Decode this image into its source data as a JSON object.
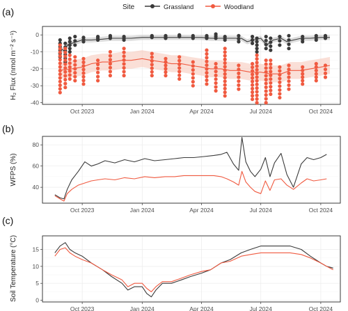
{
  "legend": {
    "title": "Site",
    "items": [
      {
        "label": "Grassland",
        "color": "#3a3a3a"
      },
      {
        "label": "Woodland",
        "color": "#f05a40"
      }
    ]
  },
  "colors": {
    "grassland": "#3a3a3a",
    "woodland": "#f05a40",
    "woodland_band": "#f6c9bd",
    "grassland_band": "#c7c7c7"
  },
  "chart_data": [
    {
      "panel": "(a)",
      "type": "line",
      "ylabel": "H₂ Flux  (nmol m⁻² s⁻¹)",
      "xlim": [
        "2023-08-01",
        "2024-10-31"
      ],
      "ylim": [
        -41,
        5
      ],
      "x_ticks": [
        {
          "date": "2023-10-01",
          "label": "Oct 2023"
        },
        {
          "date": "2024-01-01",
          "label": "Jan 2024"
        },
        {
          "date": "2024-04-01",
          "label": "Apr 2024"
        },
        {
          "date": "2024-07-01",
          "label": "Jul 2024"
        },
        {
          "date": "2024-10-01",
          "label": "Oct 2024"
        }
      ],
      "y_ticks": [
        0,
        -10,
        -20,
        -30,
        -40
      ],
      "series": [
        {
          "name": "Grassland",
          "color": "#3a3a3a",
          "x": [
            "2023-08-26",
            "2023-09-05",
            "2023-09-08",
            "2023-09-15",
            "2023-10-01",
            "2023-10-15",
            "2023-11-01",
            "2023-11-15",
            "2023-12-01",
            "2023-12-15",
            "2024-01-01",
            "2024-01-15",
            "2024-02-01",
            "2024-02-15",
            "2024-03-01",
            "2024-03-15",
            "2024-04-01",
            "2024-04-15",
            "2024-05-01",
            "2024-05-15",
            "2024-06-01",
            "2024-06-10",
            "2024-06-20",
            "2024-07-01",
            "2024-07-10",
            "2024-07-20",
            "2024-08-01",
            "2024-08-10",
            "2024-08-20",
            "2024-09-01",
            "2024-09-15",
            "2024-10-01",
            "2024-10-15"
          ],
          "y": [
            -7,
            -10,
            -6,
            -5,
            -3,
            -3,
            -2.5,
            -2,
            -2,
            -2,
            -1.5,
            -1.5,
            -1.5,
            -1.5,
            -1.5,
            -1.5,
            -1.5,
            -2,
            -2,
            -2,
            -2,
            -4,
            -3,
            -2,
            -6,
            -3,
            -2,
            -4,
            -3,
            -2,
            -2,
            -1.5,
            -1.5
          ]
        },
        {
          "name": "Woodland",
          "color": "#f05a40",
          "x": [
            "2023-08-26",
            "2023-09-15",
            "2023-10-01",
            "2023-10-15",
            "2023-11-01",
            "2023-11-15",
            "2023-12-01",
            "2023-12-15",
            "2024-01-01",
            "2024-01-15",
            "2024-02-01",
            "2024-02-15",
            "2024-03-01",
            "2024-03-15",
            "2024-04-01",
            "2024-04-15",
            "2024-05-01",
            "2024-05-15",
            "2024-06-01",
            "2024-06-15",
            "2024-07-01",
            "2024-07-15",
            "2024-08-01",
            "2024-08-15",
            "2024-09-01",
            "2024-09-15",
            "2024-10-01",
            "2024-10-15"
          ],
          "y": [
            -21,
            -20,
            -19,
            -17,
            -16,
            -16,
            -15,
            -15,
            -14,
            -15,
            -16,
            -17,
            -17,
            -18,
            -19,
            -20,
            -20,
            -21,
            -21,
            -22,
            -22,
            -23,
            -23,
            -21,
            -21,
            -20,
            -19,
            -18
          ]
        }
      ],
      "scatter": [
        {
          "name": "Grassland",
          "color": "#3a3a3a",
          "x": [
            "2023-08-28",
            "2023-09-05",
            "2023-09-12",
            "2023-09-20",
            "2023-10-03",
            "2023-10-25",
            "2023-11-13",
            "2023-12-04",
            "2024-01-16",
            "2024-02-06",
            "2024-02-27",
            "2024-03-19",
            "2024-04-09",
            "2024-04-23",
            "2024-05-07",
            "2024-05-28",
            "2024-06-18",
            "2024-06-25",
            "2024-07-09",
            "2024-07-16",
            "2024-07-30",
            "2024-08-13",
            "2024-09-03",
            "2024-09-24",
            "2024-10-08"
          ],
          "y": [
            -3,
            -5,
            -2,
            -1,
            -1.5,
            -1,
            -0.5,
            -1,
            -0.5,
            -0.5,
            0,
            -0.5,
            -0.5,
            0.5,
            -1,
            -0.5,
            -1,
            -2,
            -1,
            -2,
            -1,
            -0.5,
            -1,
            -0.5,
            -0.5
          ],
          "y_low": [
            -13,
            -16,
            -10,
            -6,
            -4,
            -3,
            -2,
            -3,
            -1.5,
            -2,
            -1,
            -2,
            -2,
            -2,
            -3,
            -4,
            -5,
            -10,
            -8,
            -9,
            -6,
            -8,
            -4,
            -3,
            -2
          ]
        },
        {
          "name": "Woodland",
          "color": "#f05a40",
          "x": [
            "2023-08-28",
            "2023-09-05",
            "2023-09-12",
            "2023-09-20",
            "2023-10-03",
            "2023-10-25",
            "2023-11-13",
            "2023-12-04",
            "2024-01-16",
            "2024-02-06",
            "2024-02-27",
            "2024-03-19",
            "2024-04-09",
            "2024-04-23",
            "2024-05-07",
            "2024-05-28",
            "2024-06-18",
            "2024-06-25",
            "2024-07-09",
            "2024-07-16",
            "2024-07-30",
            "2024-08-13",
            "2024-09-03",
            "2024-09-24",
            "2024-10-08"
          ],
          "y": [
            -6,
            -8,
            -12,
            -13,
            -14,
            -15,
            -10,
            -8,
            -11,
            -14,
            -13,
            -16,
            -9,
            -17,
            -8,
            -18,
            -17,
            -12,
            -15,
            -15,
            -19,
            -18,
            -19,
            -17,
            -18
          ],
          "y_low": [
            -34,
            -31,
            -26,
            -27,
            -29,
            -27,
            -24,
            -24,
            -24,
            -24,
            -26,
            -30,
            -29,
            -33,
            -36,
            -32,
            -38,
            -40,
            -40,
            -35,
            -37,
            -32,
            -29,
            -27,
            -25
          ]
        }
      ]
    },
    {
      "panel": "(b)",
      "type": "line",
      "ylabel": "WFPS (%)",
      "xlim": [
        "2023-08-01",
        "2024-10-31"
      ],
      "ylim": [
        25,
        88
      ],
      "x_ticks": [
        {
          "date": "2023-10-01",
          "label": "Oct 2023"
        },
        {
          "date": "2024-01-01",
          "label": "Jan 2024"
        },
        {
          "date": "2024-04-01",
          "label": "Apr 2024"
        },
        {
          "date": "2024-07-01",
          "label": "Jul 2024"
        },
        {
          "date": "2024-10-01",
          "label": "Oct 2024"
        }
      ],
      "y_ticks": [
        40,
        60,
        80
      ],
      "series": [
        {
          "name": "Grassland",
          "color": "#3a3a3a",
          "x": [
            "2023-08-20",
            "2023-08-28",
            "2023-09-03",
            "2023-09-08",
            "2023-09-15",
            "2023-09-25",
            "2023-10-05",
            "2023-10-15",
            "2023-10-25",
            "2023-11-05",
            "2023-11-20",
            "2023-12-05",
            "2023-12-20",
            "2024-01-05",
            "2024-01-20",
            "2024-02-05",
            "2024-02-20",
            "2024-03-05",
            "2024-03-20",
            "2024-04-05",
            "2024-04-20",
            "2024-05-01",
            "2024-05-10",
            "2024-05-20",
            "2024-05-28",
            "2024-06-02",
            "2024-06-08",
            "2024-06-15",
            "2024-06-22",
            "2024-07-01",
            "2024-07-08",
            "2024-07-15",
            "2024-07-22",
            "2024-08-01",
            "2024-08-10",
            "2024-08-20",
            "2024-09-01",
            "2024-09-10",
            "2024-09-20",
            "2024-10-01",
            "2024-10-10"
          ],
          "y": [
            33,
            30,
            29,
            38,
            47,
            55,
            64,
            60,
            62,
            65,
            63,
            66,
            64,
            67,
            65,
            66,
            67,
            68,
            68,
            69,
            70,
            71,
            73,
            62,
            56,
            87,
            64,
            55,
            50,
            57,
            68,
            50,
            63,
            72,
            52,
            40,
            62,
            68,
            66,
            68,
            71
          ]
        },
        {
          "name": "Woodland",
          "color": "#f05a40",
          "x": [
            "2023-08-20",
            "2023-08-28",
            "2023-09-03",
            "2023-09-08",
            "2023-09-15",
            "2023-09-25",
            "2023-10-05",
            "2023-10-15",
            "2023-10-25",
            "2023-11-05",
            "2023-11-20",
            "2023-12-05",
            "2023-12-20",
            "2024-01-05",
            "2024-01-20",
            "2024-02-05",
            "2024-02-20",
            "2024-03-05",
            "2024-03-20",
            "2024-04-05",
            "2024-04-20",
            "2024-05-01",
            "2024-05-10",
            "2024-05-20",
            "2024-05-28",
            "2024-06-02",
            "2024-06-08",
            "2024-06-15",
            "2024-06-22",
            "2024-07-01",
            "2024-07-08",
            "2024-07-15",
            "2024-07-22",
            "2024-08-01",
            "2024-08-10",
            "2024-08-20",
            "2024-09-01",
            "2024-09-10",
            "2024-09-20",
            "2024-10-01",
            "2024-10-10"
          ],
          "y": [
            32,
            29,
            27,
            34,
            38,
            42,
            44,
            46,
            47,
            48,
            47,
            49,
            48,
            50,
            49,
            50,
            50,
            51,
            51,
            51,
            51,
            50,
            48,
            45,
            42,
            55,
            45,
            40,
            36,
            34,
            46,
            37,
            47,
            48,
            42,
            38,
            44,
            48,
            46,
            47,
            48
          ]
        }
      ]
    },
    {
      "panel": "(c)",
      "type": "line",
      "ylabel": "Soil Temperature (°C)",
      "xlim": [
        "2023-08-01",
        "2024-10-31"
      ],
      "ylim": [
        -0.5,
        19
      ],
      "x_ticks": [
        {
          "date": "2023-10-01",
          "label": "Oct 2023"
        },
        {
          "date": "2024-01-01",
          "label": "Jan 2024"
        },
        {
          "date": "2024-04-01",
          "label": "Apr 2024"
        },
        {
          "date": "2024-07-01",
          "label": "Jul 2024"
        },
        {
          "date": "2024-10-01",
          "label": "Oct 2024"
        }
      ],
      "y_ticks": [
        0,
        5,
        10,
        15
      ],
      "series": [
        {
          "name": "Grassland",
          "color": "#3a3a3a",
          "x": [
            "2023-08-20",
            "2023-08-28",
            "2023-09-05",
            "2023-09-12",
            "2023-09-20",
            "2023-10-01",
            "2023-10-15",
            "2023-11-01",
            "2023-11-15",
            "2023-12-01",
            "2023-12-10",
            "2023-12-20",
            "2024-01-01",
            "2024-01-08",
            "2024-01-15",
            "2024-01-22",
            "2024-02-01",
            "2024-02-15",
            "2024-03-01",
            "2024-03-15",
            "2024-04-01",
            "2024-04-15",
            "2024-05-01",
            "2024-05-15",
            "2024-06-01",
            "2024-06-15",
            "2024-07-01",
            "2024-07-15",
            "2024-08-01",
            "2024-08-15",
            "2024-09-01",
            "2024-09-15",
            "2024-10-01",
            "2024-10-10",
            "2024-10-20"
          ],
          "y": [
            14,
            16,
            17,
            15,
            14,
            13,
            11,
            9,
            7,
            5,
            3,
            4,
            4,
            2,
            1,
            3,
            5,
            5,
            6,
            7,
            8,
            9,
            11,
            12,
            14,
            15,
            16,
            16,
            16,
            16,
            15,
            13,
            11,
            10,
            9.5
          ]
        },
        {
          "name": "Woodland",
          "color": "#f05a40",
          "x": [
            "2023-08-20",
            "2023-08-28",
            "2023-09-05",
            "2023-09-12",
            "2023-09-20",
            "2023-10-01",
            "2023-10-15",
            "2023-11-01",
            "2023-11-15",
            "2023-12-01",
            "2023-12-10",
            "2023-12-20",
            "2024-01-01",
            "2024-01-08",
            "2024-01-15",
            "2024-01-22",
            "2024-02-01",
            "2024-02-15",
            "2024-03-01",
            "2024-03-15",
            "2024-04-01",
            "2024-04-15",
            "2024-05-01",
            "2024-05-15",
            "2024-06-01",
            "2024-06-15",
            "2024-07-01",
            "2024-07-15",
            "2024-08-01",
            "2024-08-15",
            "2024-09-01",
            "2024-09-15",
            "2024-10-01",
            "2024-10-10",
            "2024-10-20"
          ],
          "y": [
            13,
            15,
            15.5,
            14,
            13,
            12,
            11,
            9,
            7.5,
            6,
            4,
            5,
            5,
            3.5,
            2.5,
            4,
            5.5,
            5.5,
            6.5,
            7.5,
            8.5,
            9,
            11,
            11.5,
            13,
            13.5,
            14,
            14,
            14,
            14,
            13.5,
            12.5,
            11,
            10,
            9
          ]
        }
      ]
    }
  ]
}
